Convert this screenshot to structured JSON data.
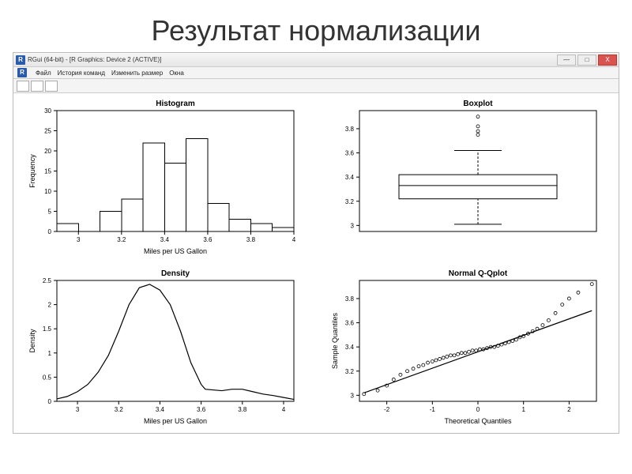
{
  "slide": {
    "title": "Результат нормализации"
  },
  "window": {
    "title": "RGui (64-bit) - [R Graphics: Device 2 (ACTIVE)]",
    "menubar": [
      "Файл",
      "История команд",
      "Изменить размер",
      "Окна"
    ],
    "min_label": "—",
    "max_label": "□",
    "close_label": "X"
  },
  "colors": {
    "bar_fill": "#ffffff",
    "stroke": "#000000",
    "bg": "#ffffff"
  },
  "histogram": {
    "type": "histogram",
    "title": "Histogram",
    "xlabel": "Miles per US Gallon",
    "ylabel": "Frequency",
    "xlim": [
      2.9,
      4.0
    ],
    "ylim": [
      0,
      30
    ],
    "xticks": [
      3.0,
      3.2,
      3.4,
      3.6,
      3.8,
      4.0
    ],
    "yticks": [
      0,
      5,
      10,
      15,
      20,
      25,
      30
    ],
    "breaks": [
      2.9,
      3.0,
      3.1,
      3.2,
      3.3,
      3.4,
      3.5,
      3.6,
      3.7,
      3.8,
      3.9,
      4.0
    ],
    "counts": [
      2,
      0,
      5,
      8,
      22,
      17,
      23,
      7,
      3,
      2,
      1
    ]
  },
  "boxplot": {
    "type": "boxplot",
    "title": "Boxplot",
    "yticks": [
      3.0,
      3.2,
      3.4,
      3.6,
      3.8
    ],
    "ylim": [
      2.95,
      3.95
    ],
    "stats": {
      "lower_whisker": 3.01,
      "q1": 3.22,
      "median": 3.33,
      "q3": 3.42,
      "upper_whisker": 3.62
    },
    "outliers": [
      3.75,
      3.78,
      3.82,
      3.9
    ]
  },
  "density": {
    "type": "line",
    "title": "Density",
    "xlabel": "Miles per US Gallon",
    "ylabel": "Density",
    "xlim": [
      2.9,
      4.05
    ],
    "ylim": [
      0,
      2.5
    ],
    "xticks": [
      3.0,
      3.2,
      3.4,
      3.6,
      3.8,
      4.0
    ],
    "yticks": [
      0.0,
      0.5,
      1.0,
      1.5,
      2.0,
      2.5
    ],
    "x": [
      2.9,
      2.95,
      3.0,
      3.05,
      3.1,
      3.15,
      3.2,
      3.25,
      3.3,
      3.35,
      3.4,
      3.45,
      3.5,
      3.55,
      3.6,
      3.62,
      3.7,
      3.75,
      3.8,
      3.85,
      3.9,
      3.95,
      4.0,
      4.05
    ],
    "y": [
      0.05,
      0.1,
      0.2,
      0.35,
      0.6,
      0.95,
      1.45,
      2.0,
      2.35,
      2.42,
      2.3,
      2.0,
      1.45,
      0.8,
      0.35,
      0.25,
      0.22,
      0.25,
      0.25,
      0.2,
      0.15,
      0.12,
      0.08,
      0.04
    ]
  },
  "qqplot": {
    "type": "scatter",
    "title": "Normal Q-Qplot",
    "xlabel": "Theoretical Quantiles",
    "ylabel": "Sample Quantiles",
    "xlim": [
      -2.6,
      2.6
    ],
    "ylim": [
      2.95,
      3.95
    ],
    "xticks": [
      -2,
      -1,
      0,
      1,
      2
    ],
    "yticks": [
      3.0,
      3.2,
      3.4,
      3.6,
      3.8
    ],
    "line": {
      "x0": -2.5,
      "y0": 3.02,
      "x1": 2.5,
      "y1": 3.7
    },
    "x": [
      -2.5,
      -2.2,
      -2.0,
      -1.85,
      -1.7,
      -1.55,
      -1.42,
      -1.3,
      -1.2,
      -1.1,
      -1.0,
      -0.92,
      -0.84,
      -0.76,
      -0.68,
      -0.6,
      -0.52,
      -0.44,
      -0.36,
      -0.28,
      -0.2,
      -0.12,
      -0.04,
      0.04,
      0.12,
      0.2,
      0.28,
      0.36,
      0.44,
      0.52,
      0.6,
      0.68,
      0.76,
      0.84,
      0.92,
      1.0,
      1.1,
      1.2,
      1.3,
      1.42,
      1.55,
      1.7,
      1.85,
      2.0,
      2.2,
      2.5
    ],
    "y": [
      3.01,
      3.04,
      3.08,
      3.13,
      3.17,
      3.2,
      3.22,
      3.24,
      3.25,
      3.27,
      3.28,
      3.29,
      3.3,
      3.31,
      3.32,
      3.33,
      3.33,
      3.34,
      3.35,
      3.35,
      3.36,
      3.37,
      3.37,
      3.38,
      3.38,
      3.39,
      3.4,
      3.4,
      3.41,
      3.42,
      3.43,
      3.44,
      3.45,
      3.46,
      3.48,
      3.49,
      3.51,
      3.53,
      3.55,
      3.58,
      3.62,
      3.68,
      3.75,
      3.8,
      3.85,
      3.92
    ]
  }
}
